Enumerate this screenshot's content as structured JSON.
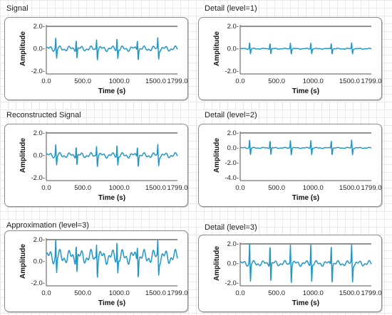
{
  "colors": {
    "signal": "#1f97c7",
    "reference_line": "#6e6e6e",
    "panel_border": "#8c8c8c"
  },
  "panels": [
    {
      "id": "signal",
      "title": "Signal",
      "y_ticks": [
        "2.0-",
        "0.0-",
        "-2.0-"
      ],
      "x_ticks": [
        "0.0",
        "500.0",
        "1000.0",
        "1500.0",
        "1799.0"
      ],
      "xlabel": "Time (s)",
      "ylabel": "Amplitude"
    },
    {
      "id": "detail1",
      "title": "Detail (level=1)",
      "y_ticks": [
        "2.0-",
        "0.0-",
        "-2.0-"
      ],
      "x_ticks": [
        "0.0",
        "500.0",
        "1000.0",
        "1500.0",
        "1799.0"
      ],
      "xlabel": "Time (s)",
      "ylabel": "Amplitude"
    },
    {
      "id": "recon",
      "title": "Reconstructed Signal",
      "y_ticks": [
        "2.0-",
        "0.0-",
        "-2.0-"
      ],
      "x_ticks": [
        "0.0",
        "500.0",
        "1000.0",
        "1500.0",
        "1799.0"
      ],
      "xlabel": "Time (s)",
      "ylabel": "Amplitude"
    },
    {
      "id": "detail2",
      "title": "Detail (level=2)",
      "y_ticks": [
        "2.0-",
        "0.0-",
        "-2.0-",
        "-4.0-"
      ],
      "x_ticks": [
        "0.0",
        "500.0",
        "1000.0",
        "1500.0",
        "1799.0"
      ],
      "xlabel": "Time (s)",
      "ylabel": "Amplitude"
    },
    {
      "id": "approx3",
      "title": "Approximation (level=3)",
      "y_ticks": [
        "2.0-",
        "0.0-",
        "-2.0-"
      ],
      "x_ticks": [
        "0.0",
        "500.0",
        "1000.0",
        "1500.0",
        "1799.0"
      ],
      "xlabel": "Time (s)",
      "ylabel": "Amplitude"
    },
    {
      "id": "detail3",
      "title": "Detail (level=3)",
      "y_ticks": [
        "2.0-",
        "0.0-",
        "-2.0-"
      ],
      "x_ticks": [
        "0.0",
        "500.0",
        "1000.0",
        "1500.0",
        "1799.0"
      ],
      "xlabel": "Time (s)",
      "ylabel": "Amplitude"
    }
  ],
  "chart_data": [
    {
      "type": "line",
      "title": "Signal",
      "xlabel": "Time (s)",
      "ylabel": "Amplitude",
      "xlim": [
        0,
        1799
      ],
      "ylim": [
        -2,
        2
      ],
      "reference_y": 2.0,
      "peak_times": [
        130,
        410,
        690,
        970,
        1250,
        1530
      ],
      "baseline": 0.0,
      "noise_amplitude": 0.25,
      "spike_amplitude": 1.1
    },
    {
      "type": "line",
      "title": "Detail (level=1)",
      "xlabel": "Time (s)",
      "ylabel": "Amplitude",
      "xlim": [
        0,
        1799
      ],
      "ylim": [
        -2,
        2
      ],
      "reference_y": 2.0,
      "peak_times": [
        130,
        410,
        690,
        970,
        1250,
        1530
      ],
      "baseline": 0.0,
      "noise_amplitude": 0.05,
      "spike_amplitude": 0.6
    },
    {
      "type": "line",
      "title": "Reconstructed Signal",
      "xlabel": "Time (s)",
      "ylabel": "Amplitude",
      "xlim": [
        0,
        1799
      ],
      "ylim": [
        -2,
        2
      ],
      "reference_y": 2.0,
      "peak_times": [
        130,
        410,
        690,
        970,
        1250,
        1530
      ],
      "baseline": 0.0,
      "noise_amplitude": 0.25,
      "spike_amplitude": 1.1
    },
    {
      "type": "line",
      "title": "Detail (level=2)",
      "xlabel": "Time (s)",
      "ylabel": "Amplitude",
      "xlim": [
        0,
        1799
      ],
      "ylim": [
        -4,
        2
      ],
      "reference_y": 2.0,
      "peak_times": [
        130,
        410,
        690,
        970,
        1250,
        1530
      ],
      "baseline": 0.0,
      "noise_amplitude": 0.08,
      "spike_amplitude": 1.2
    },
    {
      "type": "line",
      "title": "Approximation (level=3)",
      "xlabel": "Time (s)",
      "ylabel": "Amplitude",
      "xlim": [
        0,
        1799
      ],
      "ylim": [
        -2,
        2
      ],
      "reference_y": 2.0,
      "peak_times": [
        130,
        410,
        690,
        970,
        1250,
        1530
      ],
      "baseline": 0.4,
      "noise_amplitude": 0.7,
      "spike_amplitude": 1.8
    },
    {
      "type": "line",
      "title": "Detail (level=3)",
      "xlabel": "Time (s)",
      "ylabel": "Amplitude",
      "xlim": [
        0,
        1799
      ],
      "ylim": [
        -2,
        2
      ],
      "reference_y": 2.0,
      "peak_times": [
        130,
        410,
        690,
        970,
        1250,
        1530
      ],
      "baseline": 0.0,
      "noise_amplitude": 0.3,
      "spike_amplitude": 2.4
    }
  ]
}
